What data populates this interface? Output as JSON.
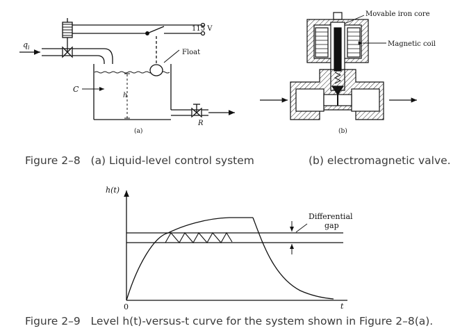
{
  "fig28": {
    "input_flow": "q",
    "input_flow_sub": "i",
    "capacitance": "C",
    "height": "h",
    "voltage": "115 V",
    "float": "Float",
    "resistance": "R",
    "panel_a": "(a)",
    "panel_b": "(b)",
    "movable_core": "Movable iron core",
    "magnetic_coil": "Magnetic coil",
    "caption_num": "Figure 2–8",
    "caption_a": "(a) Liquid-level control system",
    "caption_b": "(b) electromagnetic valve."
  },
  "fig29": {
    "ylabel": "h(t)",
    "xlabel": "t",
    "origin": "0",
    "gap_line1": "Differential",
    "gap_line2": "gap",
    "caption_num": "Figure 2–9",
    "caption_text": "Level h(t)-versus-t curve for the system shown in Figure 2–8(a)."
  }
}
